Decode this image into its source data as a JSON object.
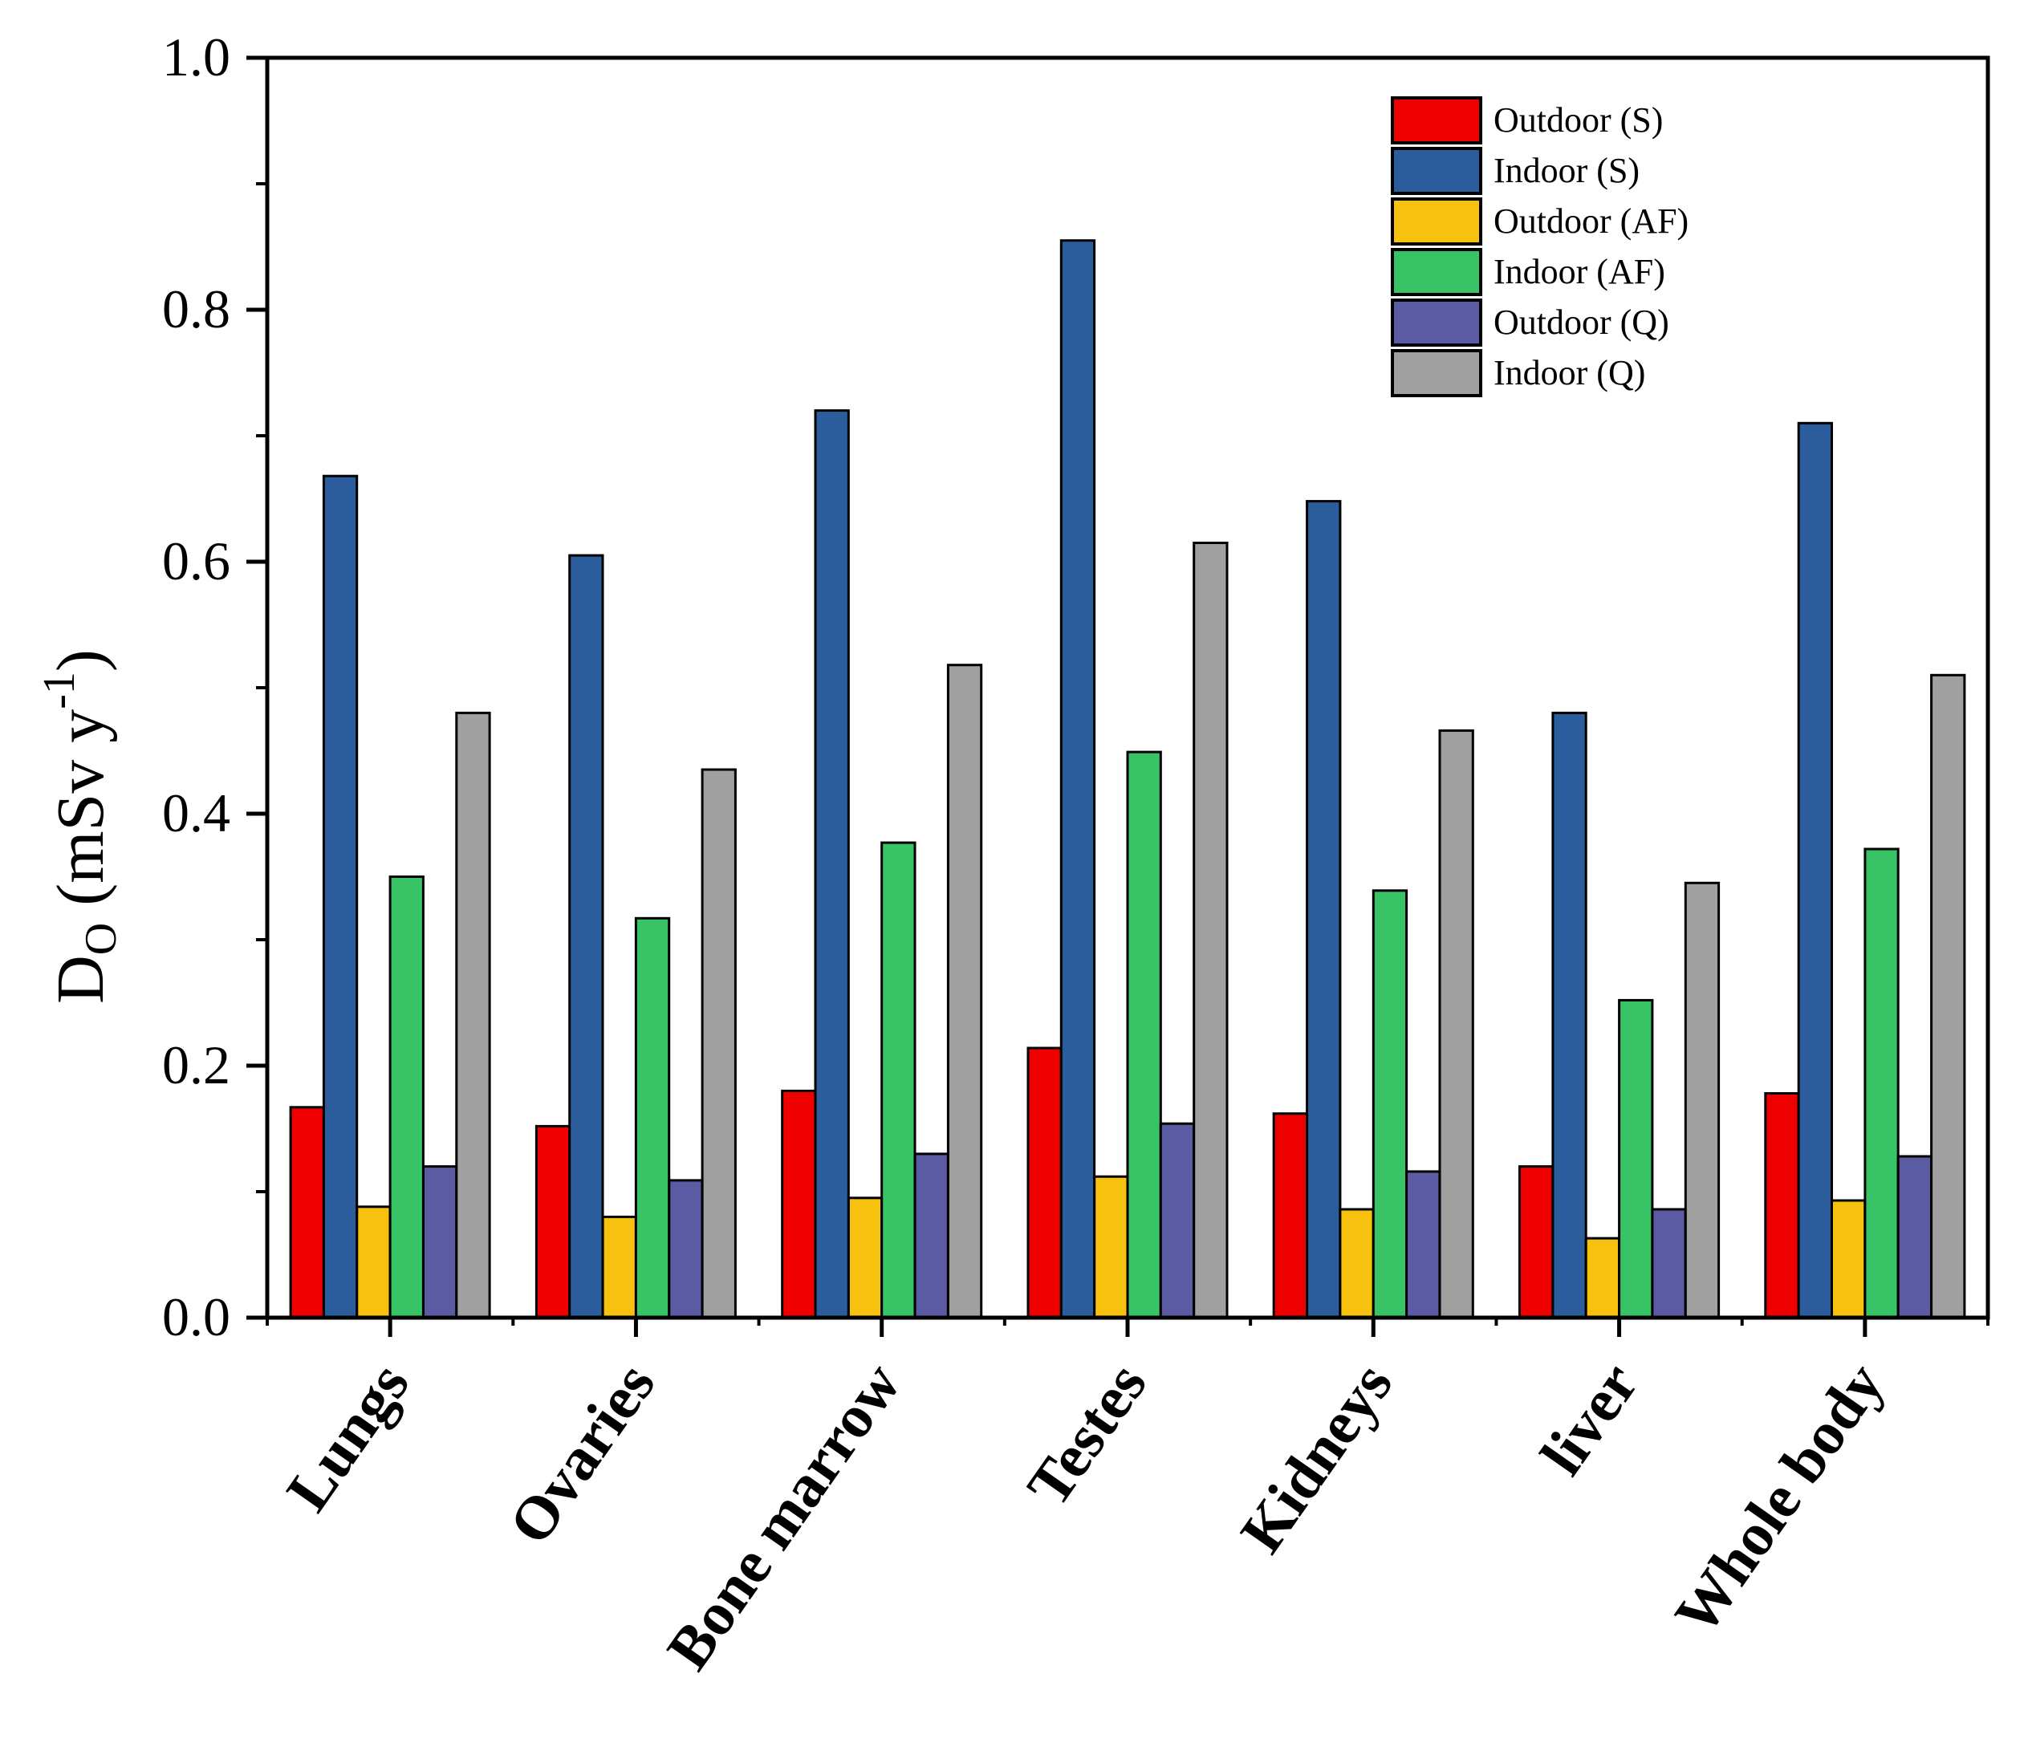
{
  "chart_data": {
    "type": "bar",
    "title": "",
    "xlabel": "",
    "ylabel": {
      "main": "D",
      "subscript": "O",
      "unit_prefix": " (mSv y",
      "superscript": "-1",
      "unit_suffix": ")"
    },
    "ylim": [
      0,
      1.0
    ],
    "yticks": [
      "0.0",
      "0.2",
      "0.4",
      "0.6",
      "0.8",
      "1.0"
    ],
    "ytick_values": [
      0,
      0.2,
      0.4,
      0.6,
      0.8,
      1.0
    ],
    "grid": false,
    "legend_position": "top-right",
    "categories": [
      "Lungs",
      "Ovaries",
      "Bone marrow",
      "Testes",
      "Kidneys",
      "liver",
      "Whole body"
    ],
    "series": [
      {
        "name": "Outdoor (S)",
        "color": "#ee0000",
        "values": [
          0.167,
          0.152,
          0.18,
          0.214,
          0.162,
          0.12,
          0.178
        ]
      },
      {
        "name": "Indoor (S)",
        "color": "#2b5d9c",
        "values": [
          0.668,
          0.605,
          0.72,
          0.855,
          0.648,
          0.48,
          0.71
        ]
      },
      {
        "name": "Outdoor (AF)",
        "color": "#f7c10f",
        "values": [
          0.088,
          0.08,
          0.095,
          0.112,
          0.086,
          0.063,
          0.093
        ]
      },
      {
        "name": "Indoor (AF)",
        "color": "#38c466",
        "values": [
          0.35,
          0.317,
          0.377,
          0.449,
          0.339,
          0.252,
          0.372
        ]
      },
      {
        "name": "Outdoor (Q)",
        "color": "#5b5ba3",
        "values": [
          0.12,
          0.109,
          0.13,
          0.154,
          0.116,
          0.086,
          0.128
        ]
      },
      {
        "name": "Indoor (Q)",
        "color": "#a0a0a0",
        "values": [
          0.48,
          0.435,
          0.518,
          0.615,
          0.466,
          0.345,
          0.51
        ]
      }
    ]
  }
}
